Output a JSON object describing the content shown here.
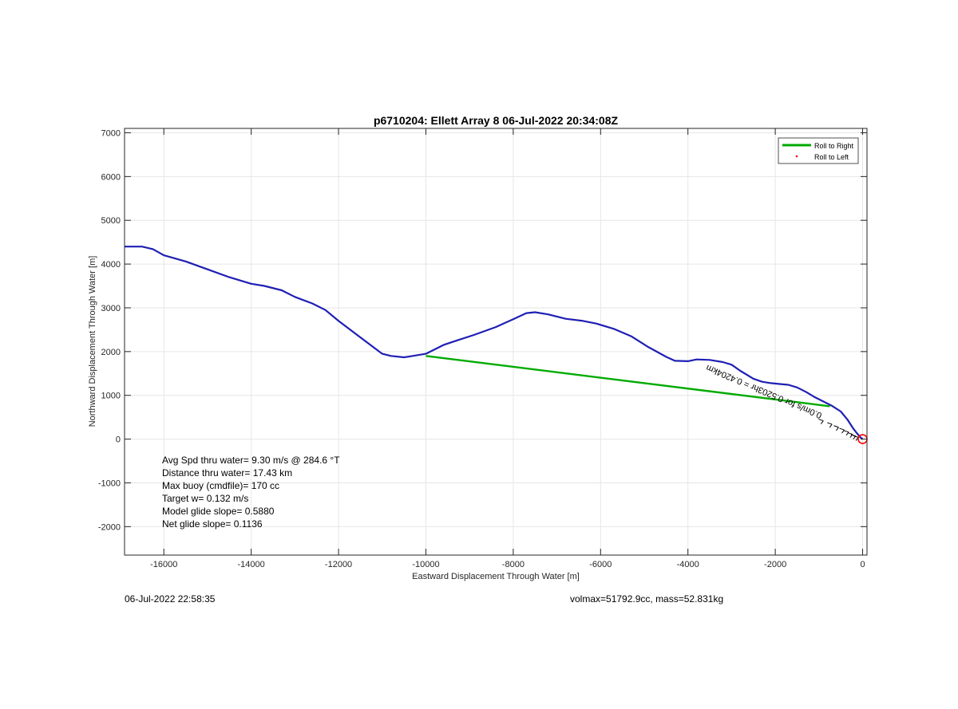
{
  "chart_data": {
    "type": "line",
    "title": "p6710204: Ellett Array 8 06-Jul-2022 20:34:08Z",
    "xlabel": "Eastward Displacement Through Water [m]",
    "ylabel": "Northward Displacement Through Water [m]",
    "xlim": [
      -16900,
      100
    ],
    "ylim": [
      -2650,
      7100
    ],
    "xticks": [
      -16000,
      -14000,
      -12000,
      -10000,
      -8000,
      -6000,
      -4000,
      -2000,
      0
    ],
    "yticks": [
      -2000,
      -1000,
      0,
      1000,
      2000,
      3000,
      4000,
      5000,
      6000,
      7000
    ],
    "grid": true,
    "legend_position": "top-right",
    "legend": [
      {
        "label": "Roll to Right",
        "color": "#00aa00",
        "marker": "line"
      },
      {
        "label": "Roll to Left",
        "color": "#ff0000",
        "marker": "dot"
      }
    ],
    "series": [
      {
        "color": "#1f1fb4",
        "x": [
          -16900,
          -16500,
          -16250,
          -16000,
          -15500,
          -15000,
          -14500,
          -14000,
          -13700,
          -13300,
          -13000,
          -12600,
          -12300,
          -12000,
          -11600,
          -11200,
          -11000,
          -10800,
          -10500,
          -10300,
          -10000,
          -9600,
          -9300,
          -8900,
          -8400,
          -8000,
          -7700,
          -7500,
          -7200,
          -6800,
          -6400,
          -6100,
          -5700,
          -5300,
          -4900,
          -4500,
          -4300,
          -4000,
          -3800,
          -3500,
          -3200,
          -3000,
          -2800,
          -2500,
          -2300,
          -2100,
          -1900,
          -1700,
          -1500,
          -1300,
          -1100,
          -900,
          -700,
          -500,
          -350,
          -220,
          -120,
          -50,
          0
        ],
        "y": [
          4400,
          4400,
          4340,
          4200,
          4060,
          3880,
          3700,
          3550,
          3500,
          3400,
          3250,
          3100,
          2950,
          2700,
          2400,
          2100,
          1950,
          1900,
          1870,
          1900,
          1950,
          2150,
          2250,
          2380,
          2560,
          2740,
          2880,
          2900,
          2850,
          2750,
          2700,
          2640,
          2520,
          2350,
          2100,
          1880,
          1790,
          1780,
          1820,
          1810,
          1760,
          1700,
          1560,
          1380,
          1310,
          1280,
          1260,
          1240,
          1180,
          1080,
          960,
          860,
          760,
          630,
          450,
          250,
          120,
          40,
          0
        ]
      },
      {
        "name": "Roll to Right",
        "color": "#00aa00",
        "x": [
          -10000,
          -750
        ],
        "y": [
          1900,
          750
        ]
      }
    ],
    "rotated_annotation": "0.0m/s for 0.5203hr = 0.4204km",
    "end_marker": {
      "x": 0,
      "y": 0,
      "color": "#ff0000",
      "shape": "circle"
    },
    "stats": [
      "Avg Spd thru water=  9.30 m/s @ 284.6 °T",
      "Distance thru water= 17.43 km",
      "Max buoy (cmdfile)= 170 cc",
      "Target w= 0.132 m/s",
      "Model glide slope= 0.5880",
      "Net glide slope= 0.1136"
    ]
  },
  "footer": {
    "timestamp": "06-Jul-2022 22:58:35",
    "mass_info": "volmax=51792.9cc, mass=52.831kg"
  }
}
